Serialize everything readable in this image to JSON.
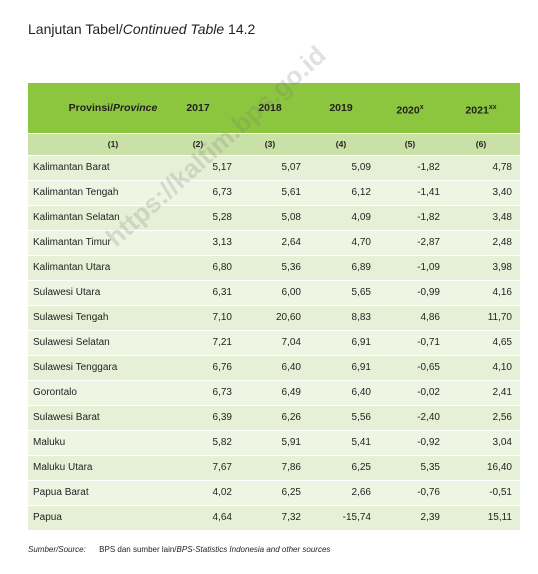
{
  "header": {
    "title": {
      "main": "Lanjutan Tabel/",
      "italic": "Continued Table",
      "tail": " 14.2"
    }
  },
  "table": {
    "columns": [
      {
        "text": "Provinsi/",
        "italic": "Province"
      },
      {
        "text": "2017"
      },
      {
        "text": "2018"
      },
      {
        "text": "2019"
      },
      {
        "text": "2020",
        "sup": "x"
      },
      {
        "text": "2021",
        "sup": "xx"
      }
    ],
    "numbers": [
      "(1)",
      "(2)",
      "(3)",
      "(4)",
      "(5)",
      "(6)"
    ],
    "rows": [
      [
        "Kalimantan Barat",
        "5,17",
        "5,07",
        "5,09",
        "-1,82",
        "4,78"
      ],
      [
        "Kalimantan Tengah",
        "6,73",
        "5,61",
        "6,12",
        "-1,41",
        "3,40"
      ],
      [
        "Kalimantan Selatan",
        "5,28",
        "5,08",
        "4,09",
        "-1,82",
        "3,48"
      ],
      [
        "Kalimantan Timur",
        "3,13",
        "2,64",
        "4,70",
        "-2,87",
        "2,48"
      ],
      [
        "Kalimantan Utara",
        "6,80",
        "5,36",
        "6,89",
        "-1,09",
        "3,98"
      ],
      [
        "Sulawesi Utara",
        "6,31",
        "6,00",
        "5,65",
        "-0,99",
        "4,16"
      ],
      [
        "Sulawesi Tengah",
        "7,10",
        "20,60",
        "8,83",
        "4,86",
        "11,70"
      ],
      [
        "Sulawesi Selatan",
        "7,21",
        "7,04",
        "6,91",
        "-0,71",
        "4,65"
      ],
      [
        "Sulawesi Tenggara",
        "6,76",
        "6,40",
        "6,91",
        "-0,65",
        "4,10"
      ],
      [
        "Gorontalo",
        "6,73",
        "6,49",
        "6,40",
        "-0,02",
        "2,41"
      ],
      [
        "Sulawesi Barat",
        "6,39",
        "6,26",
        "5,56",
        "-2,40",
        "2,56"
      ],
      [
        "Maluku",
        "5,82",
        "5,91",
        "5,41",
        "-0,92",
        "3,04"
      ],
      [
        "Maluku Utara",
        "7,67",
        "7,86",
        "6,25",
        "5,35",
        "16,40"
      ],
      [
        "Papua Barat",
        "4,02",
        "6,25",
        "2,66",
        "-0,76",
        "-0,51"
      ],
      [
        "Papua",
        "4,64",
        "7,32",
        "-15,74",
        "2,39",
        "15,11"
      ]
    ]
  },
  "footer": {
    "label": "Sumber/Source:",
    "text": "BPS dan sumber lain/",
    "italic": "BPS-Statistics Indonesia and other sources"
  },
  "watermark": "https://kaltim.bps.go.id"
}
